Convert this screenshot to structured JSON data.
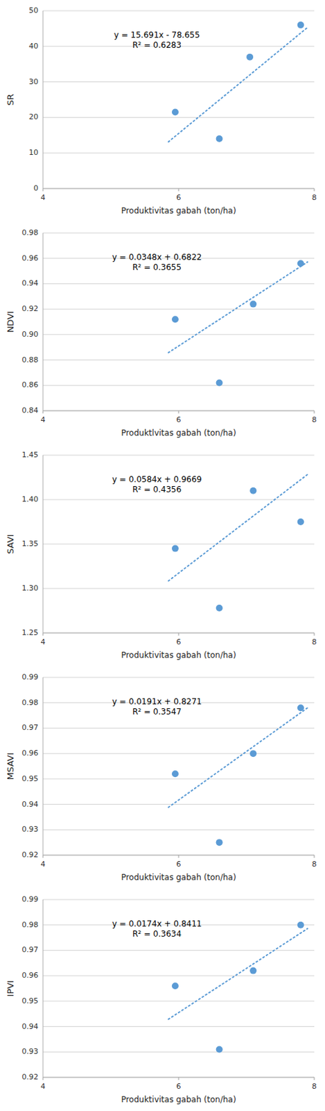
{
  "chart_data": [
    {
      "type": "scatter",
      "xlabel": "Produktivitas gabah (ton/ha)",
      "ylabel": "SR",
      "xlim": [
        4,
        8
      ],
      "xticks": [
        4,
        6,
        8
      ],
      "ylim": [
        0,
        50
      ],
      "yticks": [
        0,
        10,
        20,
        30,
        40,
        50
      ],
      "grid": "y",
      "annotations": [
        "y = 15.691x - 78.655",
        "R² = 0.6283"
      ],
      "series": [
        {
          "type": "scatter",
          "color": "#5B9BD5",
          "x": [
            5.95,
            6.6,
            7.05,
            7.8
          ],
          "values": [
            21.5,
            14.0,
            37.0,
            46.0
          ]
        },
        {
          "type": "line",
          "color": "#5B9BD5",
          "line_style": "dotted",
          "x": [
            5.85,
            7.9
          ],
          "values": [
            13.13735,
            45.3039
          ]
        }
      ]
    },
    {
      "type": "scatter",
      "xlabel": "Produktlvitas gabah (ton/ha)",
      "ylabel": "NDVI",
      "xlim": [
        4,
        8
      ],
      "xticks": [
        4,
        6,
        8
      ],
      "ylim": [
        0.84,
        0.98
      ],
      "yticks": [
        0.84,
        0.86,
        0.88,
        {
          "value": 0.9,
          "label": "0.90"
        },
        0.92,
        0.94,
        0.96,
        0.98
      ],
      "grid": "y",
      "annotations": [
        "y = 0.0348x + 0.6822",
        "R² = 0.3655"
      ],
      "series": [
        {
          "type": "scatter",
          "color": "#5B9BD5",
          "x": [
            5.95,
            6.6,
            7.1,
            7.8
          ],
          "values": [
            0.912,
            0.862,
            0.924,
            0.956
          ]
        },
        {
          "type": "line",
          "color": "#5B9BD5",
          "line_style": "dotted",
          "x": [
            5.85,
            7.9
          ],
          "values": [
            0.88578,
            0.95712
          ]
        }
      ]
    },
    {
      "type": "scatter",
      "xlabel": "Produktivitas gabah (ton/ha)",
      "ylabel": "SAVI",
      "xlim": [
        4,
        8
      ],
      "xticks": [
        4,
        6,
        8
      ],
      "ylim": [
        1.25,
        1.45
      ],
      "yticks": [
        1.25,
        {
          "value": 1.3,
          "label": "1.30"
        },
        1.35,
        {
          "value": 1.4,
          "label": "1.40"
        },
        1.45
      ],
      "grid": "y",
      "annotations": [
        "y = 0.0584x + 0.9669",
        "R² = 0.4356"
      ],
      "series": [
        {
          "type": "scatter",
          "color": "#5B9BD5",
          "x": [
            5.95,
            6.6,
            7.1,
            7.8
          ],
          "values": [
            1.345,
            1.278,
            1.41,
            1.375
          ]
        },
        {
          "type": "line",
          "color": "#5B9BD5",
          "line_style": "dotted",
          "x": [
            5.85,
            7.9
          ],
          "values": [
            1.30854,
            1.42826
          ]
        }
      ]
    },
    {
      "type": "scatter",
      "xlabel": "Produktivitas gabah (ton/ha)",
      "ylabel": "MSAVI",
      "xlim": [
        4,
        8
      ],
      "xticks": [
        4,
        6,
        8
      ],
      "ylim": [
        0.92,
        0.99
      ],
      "yticks": [
        0.92,
        0.93,
        0.94,
        0.95,
        0.96,
        0.97,
        0.98,
        0.99
      ],
      "grid": "y",
      "annotations": [
        "y = 0.0191x + 0.8271",
        "R² = 0.3547"
      ],
      "series": [
        {
          "type": "scatter",
          "color": "#5B9BD5",
          "x": [
            5.95,
            6.6,
            7.1,
            7.8
          ],
          "values": [
            0.952,
            0.925,
            0.96,
            0.978
          ]
        },
        {
          "type": "line",
          "color": "#5B9BD5",
          "line_style": "dotted",
          "x": [
            5.85,
            7.9
          ],
          "values": [
            0.938835,
            0.97799
          ]
        }
      ]
    },
    {
      "type": "scatter",
      "xlabel": "Produktivitas gabah (ton/ha)",
      "ylabel": "IPVI",
      "xlim": [
        4,
        8
      ],
      "xticks": [
        4,
        6,
        8
      ],
      "ylim": [
        0.92,
        0.99
      ],
      "yticks": [
        0.92,
        0.93,
        0.94,
        0.95,
        0.96,
        0.97,
        0.98,
        0.99
      ],
      "grid": "y",
      "annotations": [
        "y = 0.0174x + 0.8411",
        "R² = 0.3634"
      ],
      "series": [
        {
          "type": "scatter",
          "color": "#5B9BD5",
          "x": [
            5.95,
            6.6,
            7.1,
            7.8
          ],
          "values": [
            0.956,
            0.931,
            0.962,
            0.98
          ]
        },
        {
          "type": "line",
          "color": "#5B9BD5",
          "line_style": "dotted",
          "x": [
            5.85,
            7.9
          ],
          "values": [
            0.94289,
            0.97856
          ]
        }
      ]
    }
  ]
}
